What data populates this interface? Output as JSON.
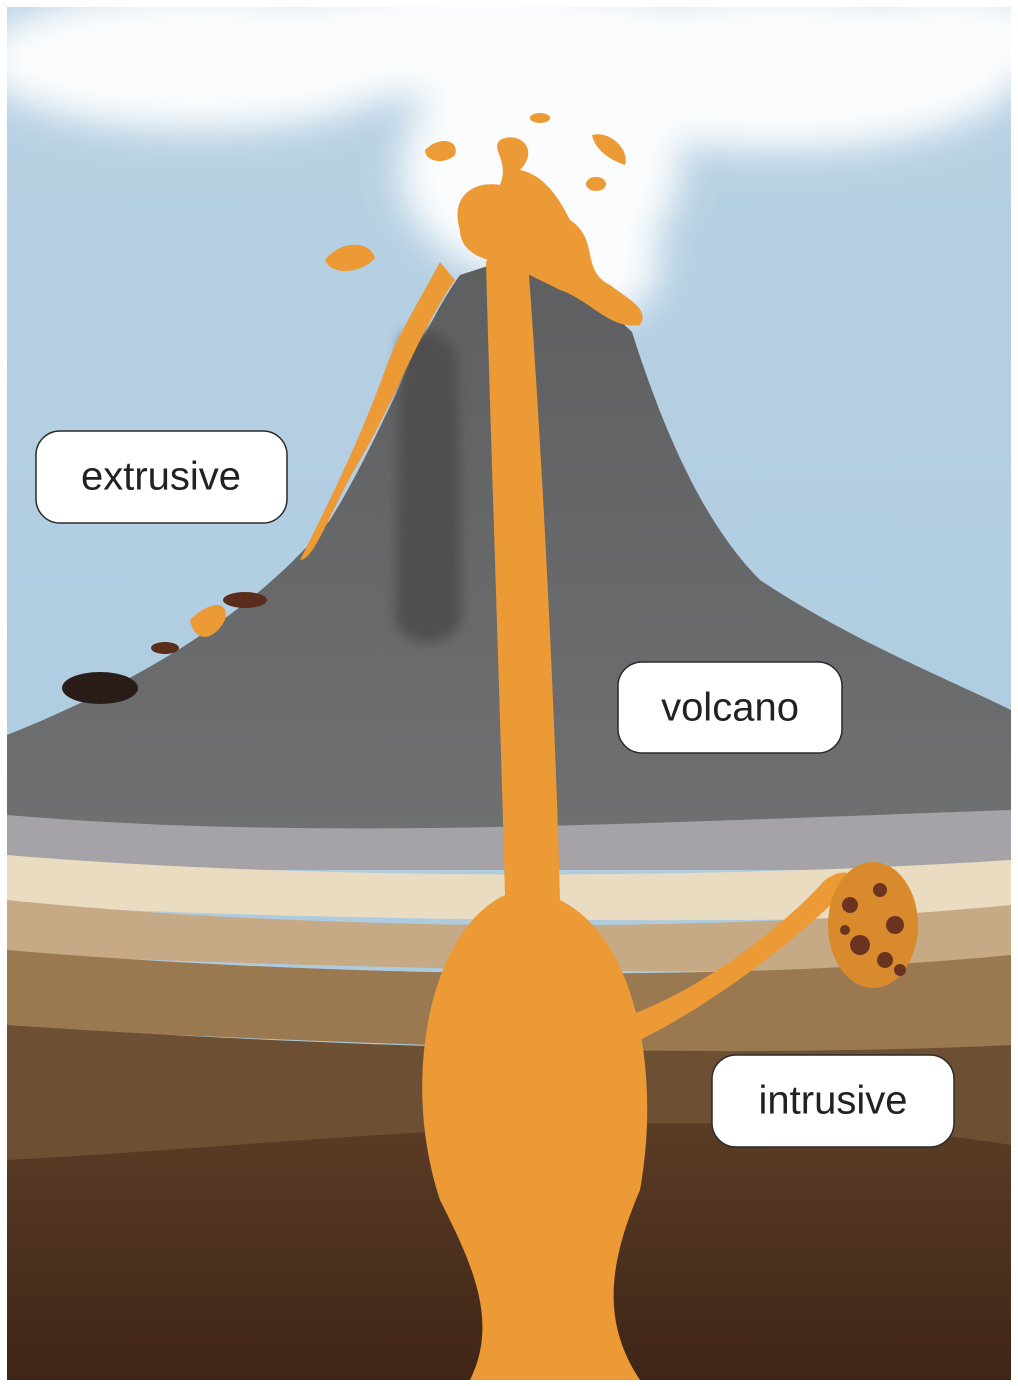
{
  "labels": [
    {
      "text": "extrusive"
    },
    {
      "text": "volcano"
    },
    {
      "text": "intrusive"
    }
  ]
}
